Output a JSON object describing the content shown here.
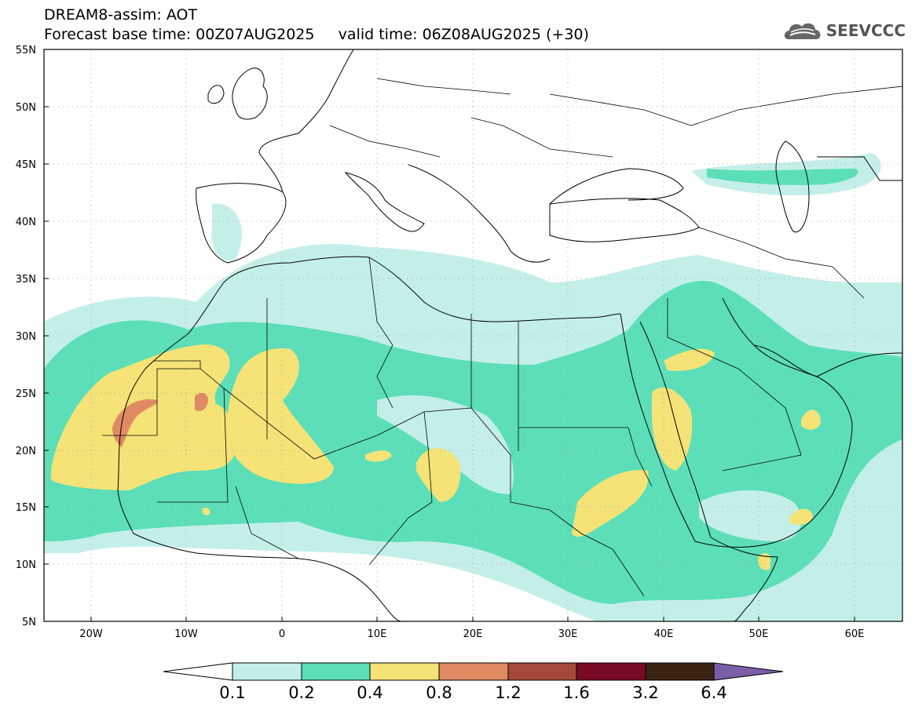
{
  "header": {
    "line1": "DREAM8-assim: AOT",
    "line2": "Forecast base time: 00Z07AUG2025     valid time: 06Z08AUG2025 (+30)"
  },
  "logo": {
    "text": "SEEVCCC",
    "icon": "cloud-icon"
  },
  "map": {
    "lon_labels": [
      "20W",
      "10W",
      "0",
      "10E",
      "20E",
      "30E",
      "40E",
      "50E",
      "60E"
    ],
    "lat_labels": [
      "55N",
      "50N",
      "45N",
      "40N",
      "35N",
      "30N",
      "25N",
      "20N",
      "15N",
      "10N",
      "5N"
    ]
  },
  "colorbar": {
    "levels": [
      "0.1",
      "0.2",
      "0.4",
      "0.8",
      "1.2",
      "1.6",
      "3.2",
      "6.4"
    ],
    "colors": [
      "#ffffff",
      "#c4efe9",
      "#5cdfb8",
      "#f5e377",
      "#e08a64",
      "#a54a38",
      "#7a0b26",
      "#3a2414",
      "#7b5ea8"
    ]
  }
}
